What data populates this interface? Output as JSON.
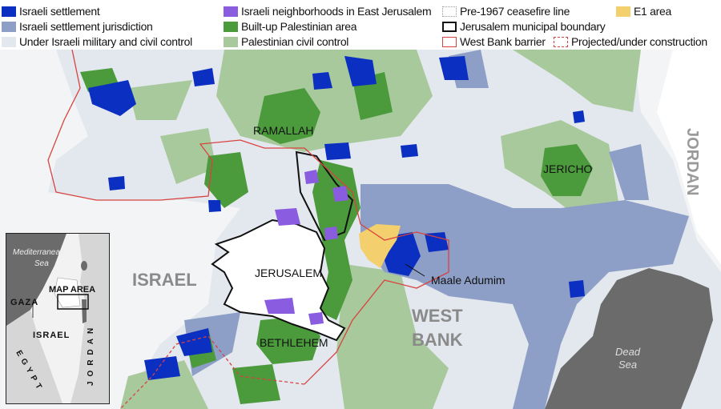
{
  "legend": {
    "items": [
      {
        "label": "Israeli settlement",
        "color": "#0b2fc0",
        "style": "fill"
      },
      {
        "label": "Israeli settlement jurisdiction",
        "color": "#8d9fc6",
        "style": "fill"
      },
      {
        "label": "Under Israeli military and civil control",
        "color": "#e3e7ee",
        "style": "fill"
      },
      {
        "label": "Israeli neighborhoods in East Jerusalem",
        "color": "#8a5ce0",
        "style": "fill"
      },
      {
        "label": "Built-up Palestinian area",
        "color": "#4b9a3b",
        "style": "fill"
      },
      {
        "label": "Palestinian civil control",
        "color": "#a8c99c",
        "style": "fill"
      },
      {
        "label": "Pre-1967 ceasefire line",
        "color": "#aaaaaa",
        "style": "dotted-outline"
      },
      {
        "label": "Jerusalem municipal boundary",
        "color": "#111111",
        "style": "outline"
      },
      {
        "label": "West Bank barrier",
        "color": "#d9433f",
        "style": "outline"
      },
      {
        "label": "Projected/under construction",
        "color": "#d9433f",
        "style": "dashed-outline"
      },
      {
        "label": "E1 area",
        "color": "#f4cf6e",
        "style": "fill"
      }
    ]
  },
  "map": {
    "labels": {
      "israel": "ISRAEL",
      "west_bank_1": "WEST",
      "west_bank_2": "BANK",
      "jordan": "JORDAN",
      "ramallah": "RAMALLAH",
      "jericho": "JERICHO",
      "jerusalem": "JERUSALEM",
      "bethlehem": "BETHLEHEM",
      "maale_adumim": "Maale Adumim",
      "dead_sea_1": "Dead",
      "dead_sea_2": "Sea"
    }
  },
  "inset": {
    "mediterranean_1": "Mediterranean",
    "mediterranean_2": "Sea",
    "map_area": "MAP AREA",
    "gaza": "GAZA",
    "israel": "ISRAEL",
    "egypt": "EGYPT",
    "jordan": "JORDAN"
  }
}
